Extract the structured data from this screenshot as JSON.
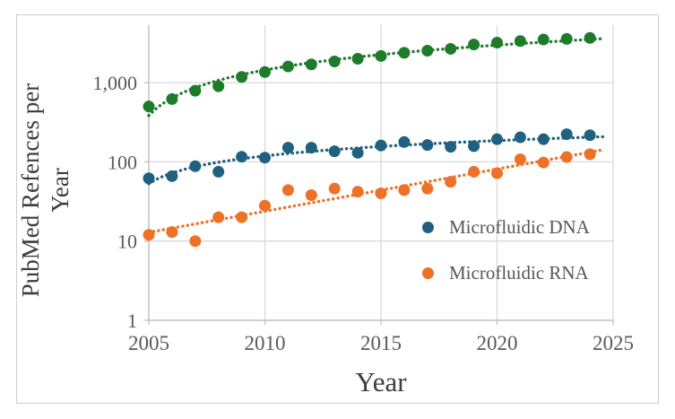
{
  "figure": {
    "type_note": "scatter chart figure"
  },
  "chart_data": {
    "type": "scatter",
    "title": "",
    "xlabel": "Year",
    "ylabel": "PubMed Refences per Year",
    "y_axis_title_lines": [
      "PubMed Refences per",
      "Year"
    ],
    "y_scale": "log",
    "grid": true,
    "xlim": [
      2005,
      2025
    ],
    "ylim": [
      1,
      5800
    ],
    "x_ticks": [
      2005,
      2010,
      2015,
      2020,
      2025
    ],
    "y_ticks": [
      1,
      10,
      100,
      1000
    ],
    "y_tick_labels": [
      "1",
      "10",
      "100",
      "1,000"
    ],
    "years": [
      2005,
      2006,
      2007,
      2008,
      2009,
      2010,
      2011,
      2012,
      2013,
      2014,
      2015,
      2016,
      2017,
      2018,
      2019,
      2020,
      2021,
      2022,
      2023,
      2024
    ],
    "series": [
      {
        "name": "",
        "in_legend": false,
        "color": "#1e7b2a",
        "trend": "power",
        "values": [
          500,
          620,
          790,
          900,
          1180,
          1360,
          1600,
          1700,
          1850,
          2000,
          2170,
          2380,
          2530,
          2670,
          3030,
          3200,
          3350,
          3500,
          3560,
          3670
        ]
      },
      {
        "name": "Microfluidic DNA",
        "in_legend": true,
        "color": "#20617f",
        "trend": "power",
        "values": [
          62,
          66,
          88,
          75,
          116,
          113,
          151,
          151,
          136,
          130,
          161,
          178,
          163,
          155,
          158,
          193,
          204,
          193,
          223,
          217
        ]
      },
      {
        "name": "Microfluidic RNA",
        "in_legend": true,
        "color": "#ee7128",
        "trend": "exponential",
        "values": [
          12,
          13,
          10,
          20,
          20,
          28,
          44,
          38,
          46,
          42,
          40,
          44,
          46,
          56,
          75,
          72,
          108,
          98,
          115,
          125
        ]
      }
    ],
    "legend": {
      "position": "inside-right",
      "entries": [
        {
          "label": "Microfluidic DNA",
          "color": "#20617f"
        },
        {
          "label": "Microfluidic RNA",
          "color": "#ee7128"
        }
      ]
    },
    "colors": {
      "gridline": "#d9d9d9",
      "axis_line": "#bfbfbf",
      "tick_text": "#595959",
      "title_text": "#3d3d3d",
      "frame_border": "#cfcfcf",
      "background": "#ffffff"
    }
  }
}
